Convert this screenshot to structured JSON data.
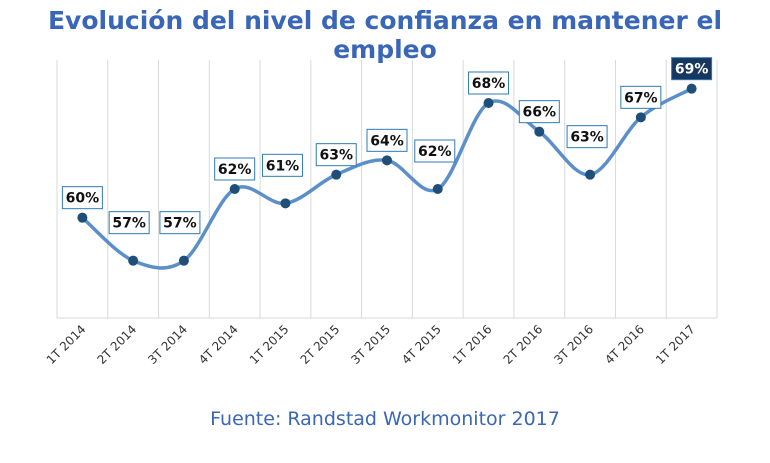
{
  "chart_data": {
    "type": "line",
    "title": "Evolución del nivel de confianza en mantener el empleo",
    "source": "Fuente: Randstad Workmonitor 2017",
    "categories": [
      "1T 2014",
      "2T 2014",
      "3T 2014",
      "4T 2014",
      "1T 2015",
      "2T 2015",
      "3T 2015",
      "4T 2015",
      "1T 2016",
      "2T 2016",
      "3T 2016",
      "4T 2016",
      "1T 2017"
    ],
    "values": [
      60,
      57,
      57,
      62,
      61,
      63,
      64,
      62,
      68,
      66,
      63,
      67,
      69
    ],
    "data_labels": [
      "60%",
      "57%",
      "57%",
      "62%",
      "61%",
      "63%",
      "64%",
      "62%",
      "68%",
      "66%",
      "63%",
      "67%",
      "69%"
    ],
    "ylim": [
      53,
      71
    ],
    "xlabel": "",
    "ylabel": "",
    "grid": "vertical",
    "line_style": "smooth",
    "colors": {
      "title": "#3a66b8",
      "line": "#5b8fc9",
      "marker": "#1f4e79",
      "label_border": "#2e7bb5",
      "highlight_fill": "#17375e",
      "grid": "#d9d9d9"
    }
  }
}
